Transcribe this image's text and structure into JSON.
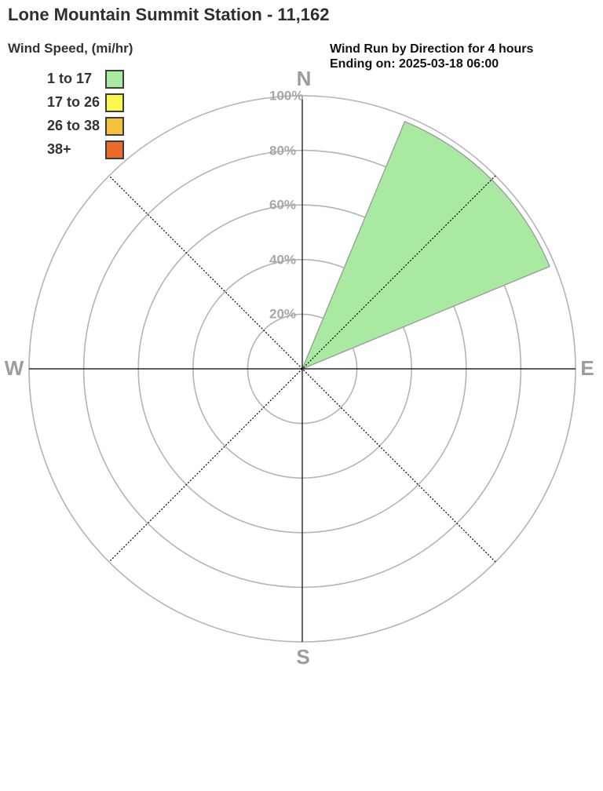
{
  "page": {
    "title": "Lone Mountain Summit Station - 11,162"
  },
  "legend": {
    "title": "Wind Speed, (mi/hr)",
    "items": [
      {
        "label": "1 to 17",
        "color": "#a9e9a1"
      },
      {
        "label": "17 to 26",
        "color": "#fbf750"
      },
      {
        "label": "26 to 38",
        "color": "#f2c23f"
      },
      {
        "label": "38+",
        "color": "#ea6a2b"
      }
    ]
  },
  "chart_data": {
    "type": "windrose",
    "title": "Wind Run by Direction for 4 hours",
    "subtitle": "Ending on: 2025-03-18 06:00",
    "radial_axis": {
      "unit": "%",
      "tick_labels": [
        "20%",
        "40%",
        "60%",
        "80%",
        "100%"
      ],
      "tick_values": [
        20,
        40,
        60,
        80,
        100
      ],
      "max": 100
    },
    "compass": {
      "n": "N",
      "e": "E",
      "s": "S",
      "w": "W"
    },
    "grid": {
      "ring_color": "#b4b4b4",
      "cardinal_line_color": "#000000",
      "diagonal_line_color": "#000000"
    },
    "sectors": [
      {
        "direction": "NE",
        "start_deg": 22.5,
        "end_deg": 67.5,
        "value_pct": 98,
        "speed_bin": "1 to 17",
        "color": "#a9e9a1",
        "edge_color": "#9a9a9a"
      }
    ]
  }
}
